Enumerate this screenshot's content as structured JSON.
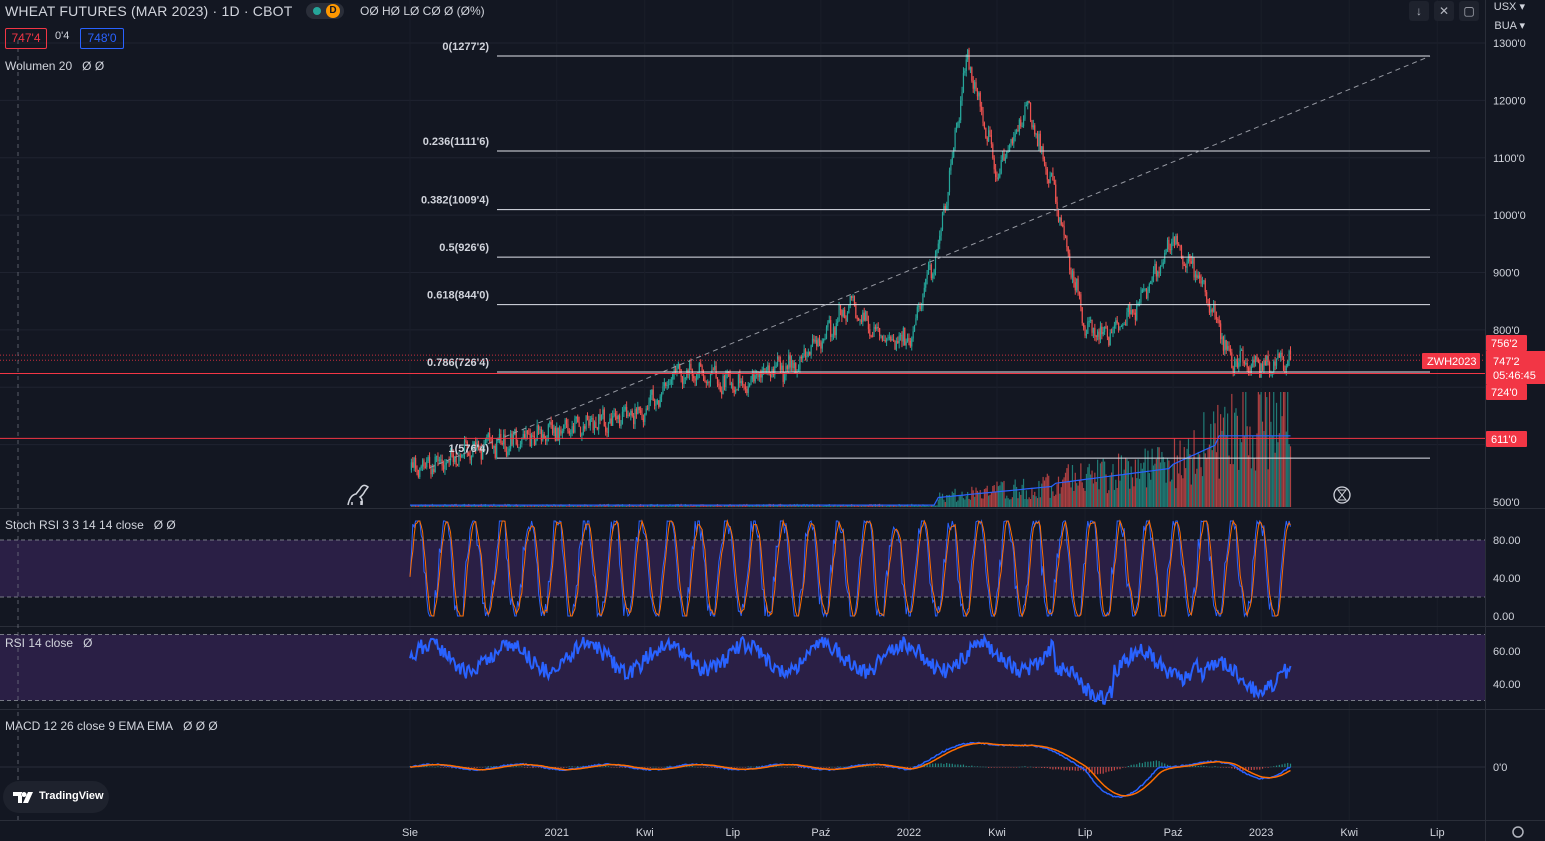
{
  "header": {
    "title": "WHEAT FUTURES (MAR 2023) · 1D · CBOT",
    "interval_badge": "D",
    "ohlc": "OØ HØ LØ CØ Ø (Ø%)",
    "bid": "747'4",
    "spread": "0'4",
    "ask": "748'0",
    "volume_label": "Wolumen 20",
    "volume_values": "Ø Ø"
  },
  "top_right": {
    "currency": "USX",
    "unit": "BUA"
  },
  "panes": {
    "stoch_label": "Stoch RSI 3 3 14 14 close",
    "stoch_values": "Ø Ø",
    "rsi_label": "RSI 14 close",
    "rsi_values": "Ø",
    "macd_label": "MACD 12 26 close 9 EMA EMA",
    "macd_values": "Ø Ø Ø"
  },
  "price_axis": [
    "1300'0",
    "1200'0",
    "1100'0",
    "1000'0",
    "900'0",
    "800'0",
    "500'0"
  ],
  "price_tags": {
    "upper": "756'2",
    "symbol": "ZWH2023",
    "last": "747'2",
    "countdown": "05:46:45",
    "lower": "724'0",
    "hline": "611'0"
  },
  "stoch_axis": [
    "80.00",
    "40.00",
    "0.00"
  ],
  "rsi_axis": [
    "60.00",
    "40.00"
  ],
  "macd_axis": [
    "0'0"
  ],
  "time_axis": [
    "Sie",
    "2021",
    "Kwi",
    "Lip",
    "Paź",
    "2022",
    "Kwi",
    "Lip",
    "Paź",
    "2023",
    "Kwi",
    "Lip"
  ],
  "branding": "TradingView",
  "colors": {
    "up": "#26a69a",
    "down": "#ef5350",
    "rsi": "#2962ff",
    "stoch_k": "#2962ff",
    "stoch_d": "#ff6d00",
    "macd": "#2962ff",
    "signal": "#ff6d00",
    "band": "#2a1f45",
    "hline": "#f23645"
  },
  "chart_data": {
    "type": "line",
    "series": [
      {
        "name": "WHEAT FUTURES (MAR 2023)",
        "x": [
          "Aug 2020",
          "Sep 2020",
          "Oct 2020",
          "Nov 2020",
          "Dec 2020",
          "Jan 2021",
          "Feb 2021",
          "Mar 2021",
          "Apr 2021",
          "May 2021",
          "Jun 2021",
          "Jul 2021",
          "Aug 2021",
          "Sep 2021",
          "Oct 2021",
          "Nov 2021",
          "Dec 2021",
          "Jan 2022",
          "Feb 2022",
          "Mar 2022",
          "Apr 2022",
          "May 2022",
          "Jun 2022",
          "Jul 2022",
          "Aug 2022",
          "Sep 2022",
          "Oct 2022",
          "Nov 2022",
          "Dec 2022",
          "Jan 2023",
          "Feb 2023"
        ],
        "values": [
          555,
          570,
          590,
          600,
          610,
          625,
          635,
          645,
          660,
          720,
          725,
          700,
          725,
          735,
          780,
          845,
          790,
          780,
          945,
          1275,
          1070,
          1190,
          1030,
          805,
          790,
          860,
          960,
          880,
          745,
          735,
          747
        ]
      }
    ],
    "fibonacci": [
      {
        "level": "0",
        "price": "1277'2"
      },
      {
        "level": "0.236",
        "price": "1111'6"
      },
      {
        "level": "0.382",
        "price": "1009'4"
      },
      {
        "level": "0.5",
        "price": "926'6"
      },
      {
        "level": "0.618",
        "price": "844'0"
      },
      {
        "level": "0.786",
        "price": "726'4"
      },
      {
        "level": "1",
        "price": "576'4"
      }
    ],
    "horizontal_lines": [
      724,
      611
    ],
    "ylim": [
      500,
      1300
    ],
    "xlabel": "",
    "ylabel": ""
  }
}
